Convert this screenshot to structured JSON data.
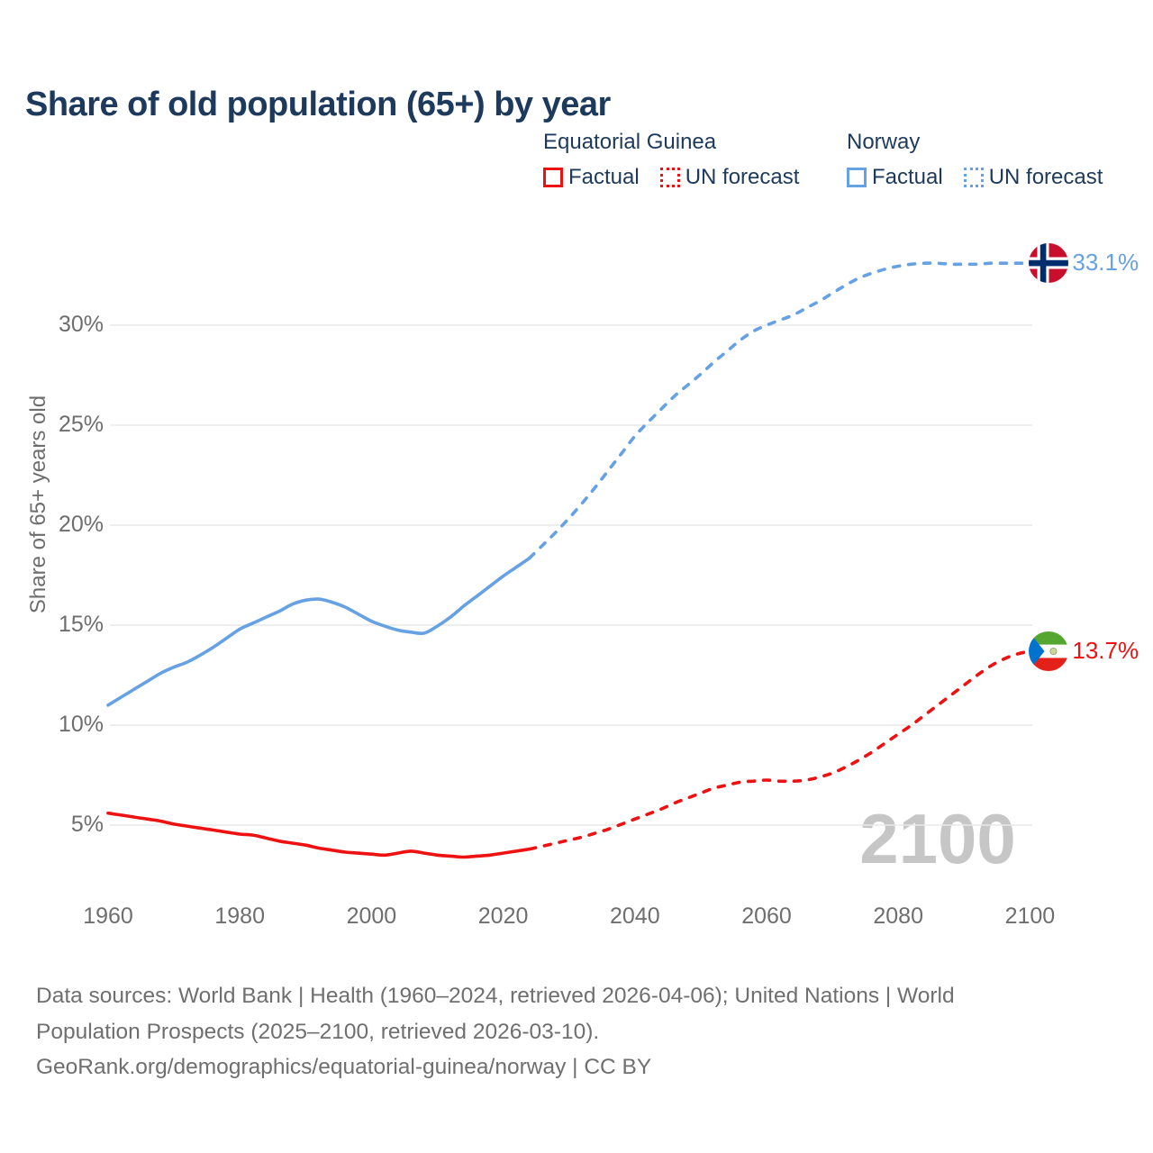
{
  "title": "Share of old population (65+) by year",
  "legend": {
    "groups": [
      {
        "country": "Equatorial Guinea",
        "color": "#ee1111",
        "items": [
          {
            "label": "Factual",
            "style": "solid"
          },
          {
            "label": "UN forecast",
            "style": "dotted"
          }
        ]
      },
      {
        "country": "Norway",
        "color": "#66a1e4",
        "items": [
          {
            "label": "Factual",
            "style": "solid"
          },
          {
            "label": "UN forecast",
            "style": "dotted"
          }
        ]
      }
    ]
  },
  "chart_data": {
    "type": "line",
    "title": "Share of old population (65+) by year",
    "xlabel": "",
    "ylabel": "Share of 65+ years old",
    "x_ticks": [
      1960,
      1980,
      2000,
      2020,
      2040,
      2060,
      2080,
      2100
    ],
    "y_tick_values": [
      5,
      10,
      15,
      20,
      25,
      30
    ],
    "y_tick_labels": [
      "5%",
      "10%",
      "15%",
      "20%",
      "25%",
      "30%"
    ],
    "xlim": [
      1955,
      2115
    ],
    "ylim": [
      2.5,
      35
    ],
    "grid": "horizontal",
    "watermark": "2100",
    "series": [
      {
        "name": "Equatorial Guinea — Factual",
        "color": "#ee1111",
        "dash": "solid",
        "points": [
          [
            1960,
            5.6
          ],
          [
            1962,
            5.5
          ],
          [
            1964,
            5.4
          ],
          [
            1966,
            5.3
          ],
          [
            1968,
            5.2
          ],
          [
            1970,
            5.05
          ],
          [
            1972,
            4.95
          ],
          [
            1974,
            4.85
          ],
          [
            1976,
            4.75
          ],
          [
            1978,
            4.65
          ],
          [
            1980,
            4.55
          ],
          [
            1982,
            4.5
          ],
          [
            1984,
            4.35
          ],
          [
            1986,
            4.2
          ],
          [
            1988,
            4.1
          ],
          [
            1990,
            4.0
          ],
          [
            1992,
            3.85
          ],
          [
            1994,
            3.75
          ],
          [
            1996,
            3.65
          ],
          [
            1998,
            3.6
          ],
          [
            2000,
            3.55
          ],
          [
            2002,
            3.5
          ],
          [
            2004,
            3.6
          ],
          [
            2006,
            3.7
          ],
          [
            2008,
            3.6
          ],
          [
            2010,
            3.5
          ],
          [
            2012,
            3.45
          ],
          [
            2014,
            3.4
          ],
          [
            2016,
            3.45
          ],
          [
            2018,
            3.5
          ],
          [
            2020,
            3.6
          ],
          [
            2022,
            3.7
          ],
          [
            2024,
            3.8
          ]
        ]
      },
      {
        "name": "Equatorial Guinea — UN forecast",
        "color": "#ee1111",
        "dash": "dashed",
        "flag": "equatorial-guinea",
        "end_label": "13.7%",
        "points": [
          [
            2024,
            3.8
          ],
          [
            2026,
            3.95
          ],
          [
            2028,
            4.1
          ],
          [
            2030,
            4.25
          ],
          [
            2032,
            4.4
          ],
          [
            2034,
            4.6
          ],
          [
            2036,
            4.8
          ],
          [
            2038,
            5.05
          ],
          [
            2040,
            5.3
          ],
          [
            2042,
            5.55
          ],
          [
            2044,
            5.8
          ],
          [
            2046,
            6.1
          ],
          [
            2048,
            6.35
          ],
          [
            2050,
            6.6
          ],
          [
            2052,
            6.85
          ],
          [
            2054,
            7.0
          ],
          [
            2056,
            7.15
          ],
          [
            2058,
            7.2
          ],
          [
            2060,
            7.25
          ],
          [
            2062,
            7.2
          ],
          [
            2064,
            7.2
          ],
          [
            2066,
            7.25
          ],
          [
            2068,
            7.4
          ],
          [
            2070,
            7.6
          ],
          [
            2072,
            7.9
          ],
          [
            2074,
            8.25
          ],
          [
            2076,
            8.65
          ],
          [
            2078,
            9.1
          ],
          [
            2080,
            9.55
          ],
          [
            2082,
            10.0
          ],
          [
            2084,
            10.5
          ],
          [
            2086,
            11.0
          ],
          [
            2088,
            11.5
          ],
          [
            2090,
            12.0
          ],
          [
            2092,
            12.5
          ],
          [
            2094,
            12.95
          ],
          [
            2096,
            13.3
          ],
          [
            2098,
            13.55
          ],
          [
            2100,
            13.7
          ]
        ]
      },
      {
        "name": "Norway — Factual",
        "color": "#66a1e4",
        "dash": "solid",
        "points": [
          [
            1960,
            11.0
          ],
          [
            1962,
            11.4
          ],
          [
            1964,
            11.8
          ],
          [
            1966,
            12.2
          ],
          [
            1968,
            12.6
          ],
          [
            1970,
            12.9
          ],
          [
            1972,
            13.15
          ],
          [
            1974,
            13.5
          ],
          [
            1976,
            13.9
          ],
          [
            1978,
            14.35
          ],
          [
            1980,
            14.8
          ],
          [
            1982,
            15.1
          ],
          [
            1984,
            15.4
          ],
          [
            1986,
            15.7
          ],
          [
            1988,
            16.05
          ],
          [
            1990,
            16.25
          ],
          [
            1992,
            16.3
          ],
          [
            1994,
            16.15
          ],
          [
            1996,
            15.9
          ],
          [
            1998,
            15.55
          ],
          [
            2000,
            15.2
          ],
          [
            2002,
            14.95
          ],
          [
            2004,
            14.75
          ],
          [
            2006,
            14.65
          ],
          [
            2008,
            14.6
          ],
          [
            2010,
            14.95
          ],
          [
            2012,
            15.4
          ],
          [
            2014,
            15.95
          ],
          [
            2016,
            16.45
          ],
          [
            2018,
            16.95
          ],
          [
            2020,
            17.45
          ],
          [
            2022,
            17.9
          ],
          [
            2024,
            18.35
          ]
        ]
      },
      {
        "name": "Norway — UN forecast",
        "color": "#66a1e4",
        "dash": "dashed",
        "flag": "norway",
        "end_label": "33.1%",
        "points": [
          [
            2024,
            18.35
          ],
          [
            2026,
            19.0
          ],
          [
            2028,
            19.65
          ],
          [
            2030,
            20.35
          ],
          [
            2032,
            21.1
          ],
          [
            2034,
            21.9
          ],
          [
            2036,
            22.75
          ],
          [
            2038,
            23.6
          ],
          [
            2040,
            24.45
          ],
          [
            2042,
            25.15
          ],
          [
            2044,
            25.8
          ],
          [
            2046,
            26.45
          ],
          [
            2048,
            27.0
          ],
          [
            2050,
            27.55
          ],
          [
            2052,
            28.15
          ],
          [
            2054,
            28.7
          ],
          [
            2056,
            29.25
          ],
          [
            2058,
            29.7
          ],
          [
            2060,
            30.0
          ],
          [
            2062,
            30.25
          ],
          [
            2064,
            30.5
          ],
          [
            2066,
            30.85
          ],
          [
            2068,
            31.2
          ],
          [
            2070,
            31.6
          ],
          [
            2072,
            32.0
          ],
          [
            2074,
            32.35
          ],
          [
            2076,
            32.6
          ],
          [
            2078,
            32.8
          ],
          [
            2080,
            32.95
          ],
          [
            2082,
            33.05
          ],
          [
            2084,
            33.1
          ],
          [
            2086,
            33.1
          ],
          [
            2088,
            33.05
          ],
          [
            2090,
            33.05
          ],
          [
            2092,
            33.05
          ],
          [
            2094,
            33.1
          ],
          [
            2096,
            33.1
          ],
          [
            2098,
            33.1
          ],
          [
            2100,
            33.1
          ]
        ]
      }
    ]
  },
  "footer": {
    "lines": [
      "Data sources: World Bank | Health (1960–2024, retrieved 2026-04-06); United Nations | World",
      "Population Prospects (2025–2100, retrieved 2026-03-10).",
      "GeoRank.org/demographics/equatorial-guinea/norway | CC BY"
    ]
  }
}
